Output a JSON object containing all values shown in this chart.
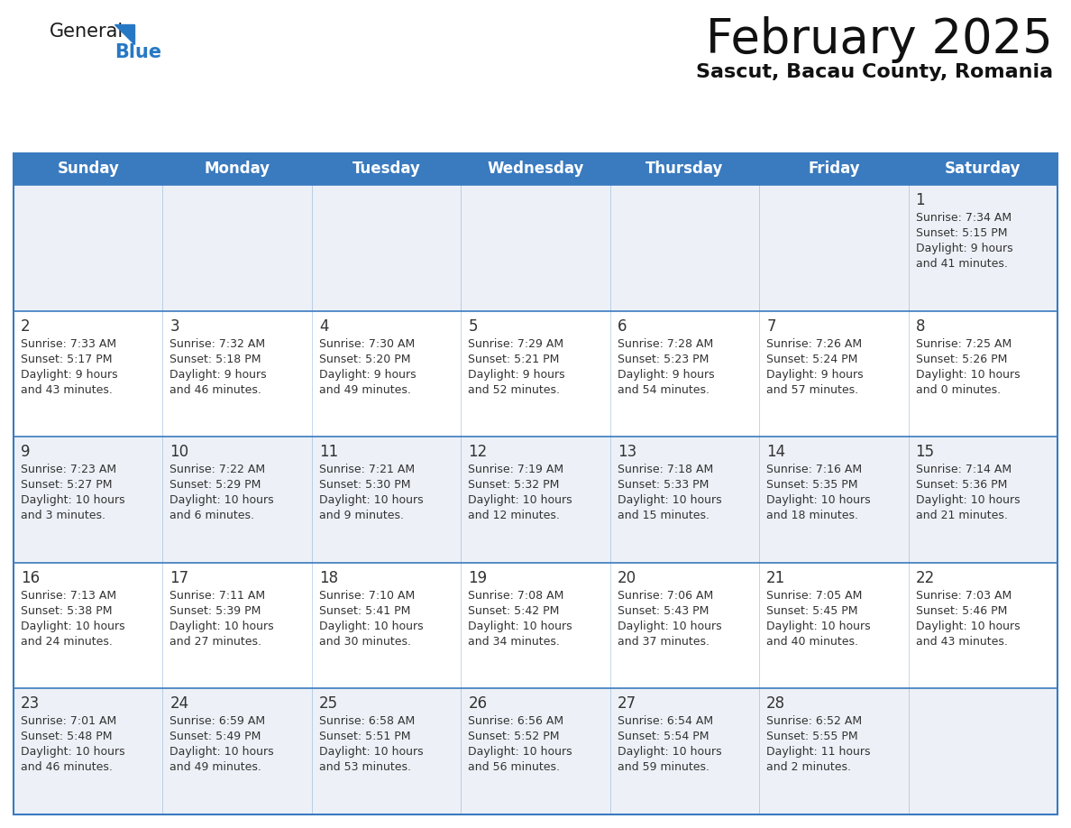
{
  "title": "February 2025",
  "subtitle": "Sascut, Bacau County, Romania",
  "header_bg": "#3a7abf",
  "header_text_color": "#ffffff",
  "cell_bg_odd": "#edf1f7",
  "cell_bg_even": "#ffffff",
  "border_color": "#3a7abf",
  "text_color": "#333333",
  "day_num_color": "#333333",
  "day_names": [
    "Sunday",
    "Monday",
    "Tuesday",
    "Wednesday",
    "Thursday",
    "Friday",
    "Saturday"
  ],
  "logo_general_color": "#1a1a1a",
  "logo_blue_color": "#2778c4",
  "calendar": [
    [
      null,
      null,
      null,
      null,
      null,
      null,
      {
        "day": 1,
        "sunrise": "7:34 AM",
        "sunset": "5:15 PM",
        "daylight": "9 hours and 41 minutes."
      }
    ],
    [
      {
        "day": 2,
        "sunrise": "7:33 AM",
        "sunset": "5:17 PM",
        "daylight": "9 hours and 43 minutes."
      },
      {
        "day": 3,
        "sunrise": "7:32 AM",
        "sunset": "5:18 PM",
        "daylight": "9 hours and 46 minutes."
      },
      {
        "day": 4,
        "sunrise": "7:30 AM",
        "sunset": "5:20 PM",
        "daylight": "9 hours and 49 minutes."
      },
      {
        "day": 5,
        "sunrise": "7:29 AM",
        "sunset": "5:21 PM",
        "daylight": "9 hours and 52 minutes."
      },
      {
        "day": 6,
        "sunrise": "7:28 AM",
        "sunset": "5:23 PM",
        "daylight": "9 hours and 54 minutes."
      },
      {
        "day": 7,
        "sunrise": "7:26 AM",
        "sunset": "5:24 PM",
        "daylight": "9 hours and 57 minutes."
      },
      {
        "day": 8,
        "sunrise": "7:25 AM",
        "sunset": "5:26 PM",
        "daylight": "10 hours and 0 minutes."
      }
    ],
    [
      {
        "day": 9,
        "sunrise": "7:23 AM",
        "sunset": "5:27 PM",
        "daylight": "10 hours and 3 minutes."
      },
      {
        "day": 10,
        "sunrise": "7:22 AM",
        "sunset": "5:29 PM",
        "daylight": "10 hours and 6 minutes."
      },
      {
        "day": 11,
        "sunrise": "7:21 AM",
        "sunset": "5:30 PM",
        "daylight": "10 hours and 9 minutes."
      },
      {
        "day": 12,
        "sunrise": "7:19 AM",
        "sunset": "5:32 PM",
        "daylight": "10 hours and 12 minutes."
      },
      {
        "day": 13,
        "sunrise": "7:18 AM",
        "sunset": "5:33 PM",
        "daylight": "10 hours and 15 minutes."
      },
      {
        "day": 14,
        "sunrise": "7:16 AM",
        "sunset": "5:35 PM",
        "daylight": "10 hours and 18 minutes."
      },
      {
        "day": 15,
        "sunrise": "7:14 AM",
        "sunset": "5:36 PM",
        "daylight": "10 hours and 21 minutes."
      }
    ],
    [
      {
        "day": 16,
        "sunrise": "7:13 AM",
        "sunset": "5:38 PM",
        "daylight": "10 hours and 24 minutes."
      },
      {
        "day": 17,
        "sunrise": "7:11 AM",
        "sunset": "5:39 PM",
        "daylight": "10 hours and 27 minutes."
      },
      {
        "day": 18,
        "sunrise": "7:10 AM",
        "sunset": "5:41 PM",
        "daylight": "10 hours and 30 minutes."
      },
      {
        "day": 19,
        "sunrise": "7:08 AM",
        "sunset": "5:42 PM",
        "daylight": "10 hours and 34 minutes."
      },
      {
        "day": 20,
        "sunrise": "7:06 AM",
        "sunset": "5:43 PM",
        "daylight": "10 hours and 37 minutes."
      },
      {
        "day": 21,
        "sunrise": "7:05 AM",
        "sunset": "5:45 PM",
        "daylight": "10 hours and 40 minutes."
      },
      {
        "day": 22,
        "sunrise": "7:03 AM",
        "sunset": "5:46 PM",
        "daylight": "10 hours and 43 minutes."
      }
    ],
    [
      {
        "day": 23,
        "sunrise": "7:01 AM",
        "sunset": "5:48 PM",
        "daylight": "10 hours and 46 minutes."
      },
      {
        "day": 24,
        "sunrise": "6:59 AM",
        "sunset": "5:49 PM",
        "daylight": "10 hours and 49 minutes."
      },
      {
        "day": 25,
        "sunrise": "6:58 AM",
        "sunset": "5:51 PM",
        "daylight": "10 hours and 53 minutes."
      },
      {
        "day": 26,
        "sunrise": "6:56 AM",
        "sunset": "5:52 PM",
        "daylight": "10 hours and 56 minutes."
      },
      {
        "day": 27,
        "sunrise": "6:54 AM",
        "sunset": "5:54 PM",
        "daylight": "10 hours and 59 minutes."
      },
      {
        "day": 28,
        "sunrise": "6:52 AM",
        "sunset": "5:55 PM",
        "daylight": "11 hours and 2 minutes."
      },
      null
    ]
  ]
}
